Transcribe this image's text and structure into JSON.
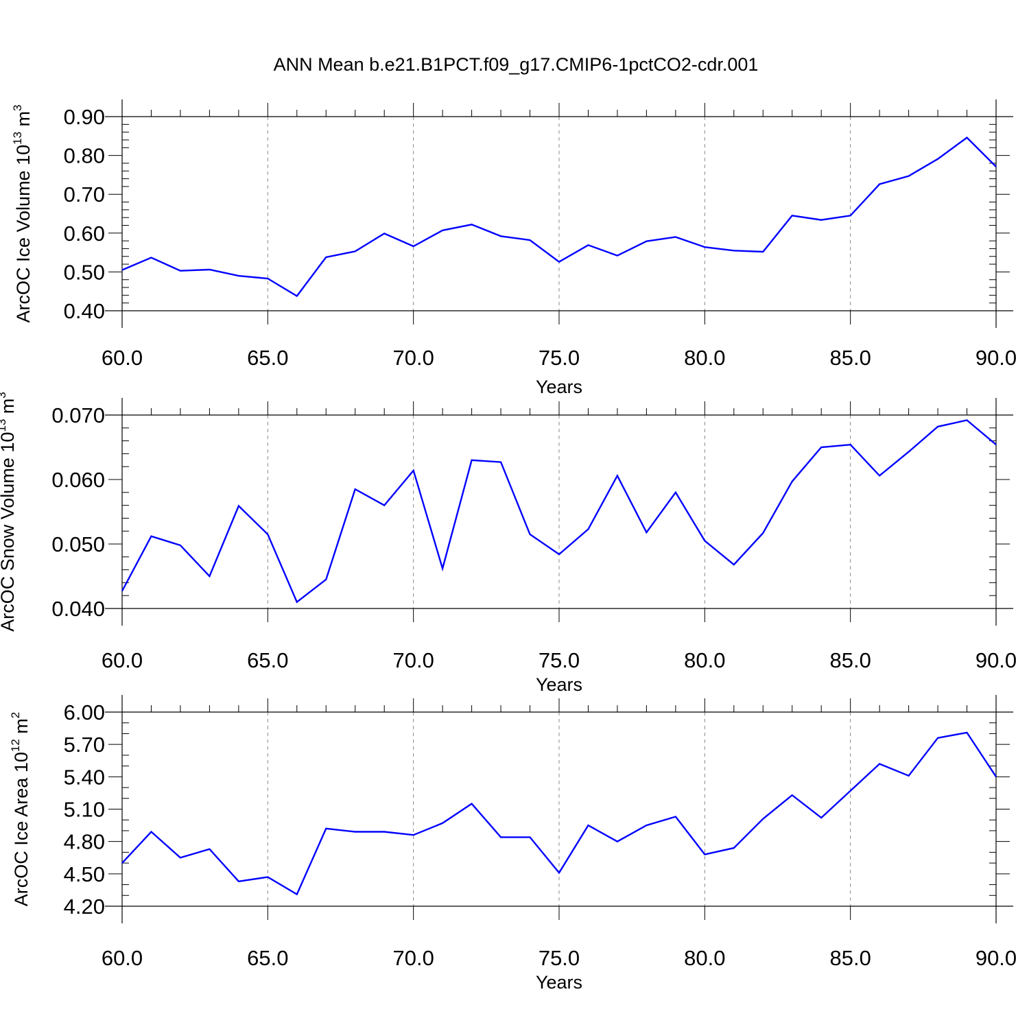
{
  "title": "ANN Mean b.e21.B1PCT.f09_g17.CMIP6-1pctCO2-cdr.001",
  "colors": {
    "line": "#0000ff",
    "axis": "#000000",
    "grid": "#888888"
  },
  "chart_data": [
    {
      "type": "line",
      "ylabel": {
        "main": "ArcOC Ice Volume 10",
        "sup": "13",
        "unit": " m",
        "unit_sup": "3"
      },
      "xlabel": "Years",
      "xlim": [
        60,
        90
      ],
      "ylim": [
        0.4,
        0.9
      ],
      "xticks": [
        "60.0",
        "65.0",
        "70.0",
        "75.0",
        "80.0",
        "85.0",
        "90.0"
      ],
      "yticks": [
        "0.40",
        "0.50",
        "0.60",
        "0.70",
        "0.80",
        "0.90"
      ],
      "grid": "vertical-dashed",
      "x": [
        60,
        61,
        62,
        63,
        64,
        65,
        66,
        67,
        68,
        69,
        70,
        71,
        72,
        73,
        74,
        75,
        76,
        77,
        78,
        79,
        80,
        81,
        82,
        83,
        84,
        85,
        86,
        87,
        88,
        89,
        90
      ],
      "values": [
        0.505,
        0.537,
        0.503,
        0.506,
        0.49,
        0.483,
        0.438,
        0.538,
        0.553,
        0.599,
        0.566,
        0.607,
        0.622,
        0.592,
        0.582,
        0.526,
        0.569,
        0.542,
        0.579,
        0.59,
        0.564,
        0.555,
        0.552,
        0.645,
        0.634,
        0.645,
        0.726,
        0.747,
        0.791,
        0.846,
        0.771
      ]
    },
    {
      "type": "line",
      "ylabel": {
        "main": "ArcOC Snow Volume 10",
        "sup": "13",
        "unit": " m",
        "unit_sup": "3"
      },
      "xlabel": "Years",
      "xlim": [
        60,
        90
      ],
      "ylim": [
        0.04,
        0.07
      ],
      "xticks": [
        "60.0",
        "65.0",
        "70.0",
        "75.0",
        "80.0",
        "85.0",
        "90.0"
      ],
      "yticks": [
        "0.040",
        "0.050",
        "0.060",
        "0.070"
      ],
      "grid": "vertical-dashed",
      "x": [
        60,
        61,
        62,
        63,
        64,
        65,
        66,
        67,
        68,
        69,
        70,
        71,
        72,
        73,
        74,
        75,
        76,
        77,
        78,
        79,
        80,
        81,
        82,
        83,
        84,
        85,
        86,
        87,
        88,
        89,
        90
      ],
      "values": [
        0.0427,
        0.0512,
        0.0498,
        0.045,
        0.0559,
        0.0515,
        0.041,
        0.0445,
        0.0585,
        0.056,
        0.0614,
        0.0462,
        0.063,
        0.0627,
        0.0515,
        0.0484,
        0.0523,
        0.0606,
        0.0518,
        0.058,
        0.0505,
        0.0468,
        0.0517,
        0.0597,
        0.065,
        0.0654,
        0.0606,
        0.0643,
        0.0682,
        0.0692,
        0.0654
      ]
    },
    {
      "type": "line",
      "ylabel": {
        "main": "ArcOC Ice Area 10",
        "sup": "12",
        "unit": " m",
        "unit_sup": "2"
      },
      "xlabel": "Years",
      "xlim": [
        60,
        90
      ],
      "ylim": [
        4.2,
        6.0
      ],
      "xticks": [
        "60.0",
        "65.0",
        "70.0",
        "75.0",
        "80.0",
        "85.0",
        "90.0"
      ],
      "yticks": [
        "4.20",
        "4.50",
        "4.80",
        "5.10",
        "5.40",
        "5.70",
        "6.00"
      ],
      "grid": "vertical-dashed",
      "x": [
        60,
        61,
        62,
        63,
        64,
        65,
        66,
        67,
        68,
        69,
        70,
        71,
        72,
        73,
        74,
        75,
        76,
        77,
        78,
        79,
        80,
        81,
        82,
        83,
        84,
        85,
        86,
        87,
        88,
        89,
        90
      ],
      "values": [
        4.6,
        4.89,
        4.65,
        4.73,
        4.43,
        4.47,
        4.31,
        4.92,
        4.89,
        4.89,
        4.86,
        4.97,
        5.15,
        4.84,
        4.84,
        4.51,
        4.95,
        4.8,
        4.95,
        5.03,
        4.68,
        4.74,
        5.01,
        5.23,
        5.02,
        5.27,
        5.52,
        5.41,
        5.76,
        5.81,
        5.4
      ]
    }
  ]
}
